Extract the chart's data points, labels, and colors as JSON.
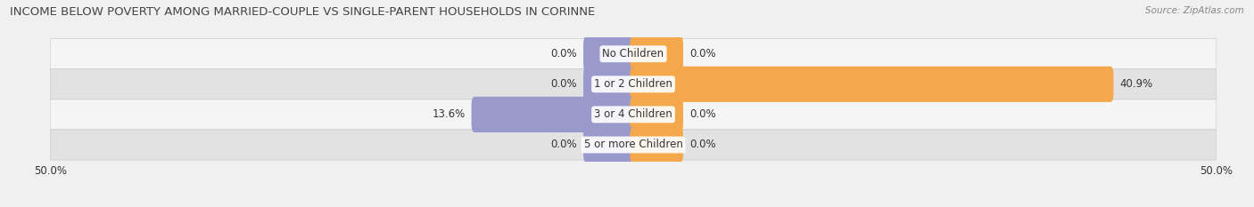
{
  "title": "INCOME BELOW POVERTY AMONG MARRIED-COUPLE VS SINGLE-PARENT HOUSEHOLDS IN CORINNE",
  "source": "Source: ZipAtlas.com",
  "categories": [
    "No Children",
    "1 or 2 Children",
    "3 or 4 Children",
    "5 or more Children"
  ],
  "married_values": [
    0.0,
    0.0,
    13.6,
    0.0
  ],
  "single_values": [
    0.0,
    40.9,
    0.0,
    0.0
  ],
  "married_color": "#9999cc",
  "single_color": "#f5a84b",
  "bar_height": 0.62,
  "stub_value": 4.0,
  "xlim": [
    -50,
    50
  ],
  "xticklabels": [
    "50.0%",
    "50.0%"
  ],
  "background_color": "#f0f0f0",
  "row_bg_light": "#f5f5f5",
  "row_bg_dark": "#e2e2e2",
  "row_border_color": "#cccccc",
  "title_fontsize": 9.5,
  "source_fontsize": 7.5,
  "label_fontsize": 8.5,
  "category_fontsize": 8.5,
  "tick_fontsize": 8.5
}
